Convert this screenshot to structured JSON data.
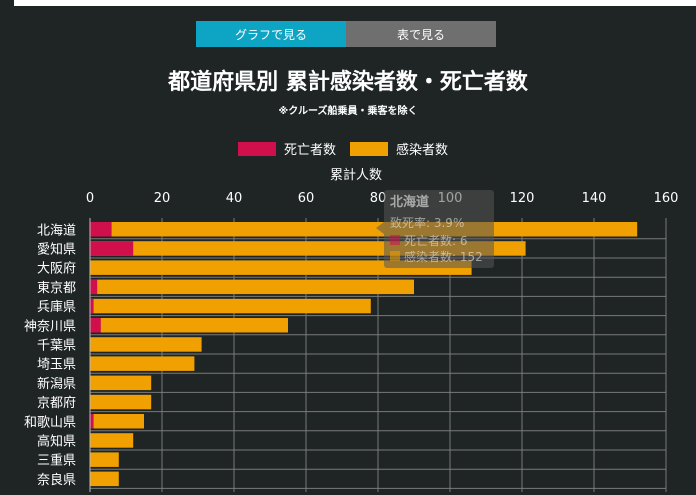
{
  "tabs": [
    {
      "label": "グラフで見る",
      "active": true
    },
    {
      "label": "表で見る",
      "active": false
    }
  ],
  "title": "都道府県別 累計感染者数・死亡者数",
  "subtitle": "※クルーズ船乗員・乗客を除く",
  "colors": {
    "deaths": "#d0104c",
    "infections": "#f0a000",
    "grid": "#7a7a7a",
    "background": "#1f2424"
  },
  "chart_data": {
    "type": "bar",
    "orientation": "horizontal",
    "stacked": true,
    "xlabel": "累計人数",
    "xlim": [
      0,
      160
    ],
    "xticks": [
      0,
      20,
      40,
      60,
      80,
      100,
      120,
      140,
      160
    ],
    "legend_position": "top",
    "categories": [
      "北海道",
      "愛知県",
      "大阪府",
      "東京都",
      "兵庫県",
      "神奈川県",
      "千葉県",
      "埼玉県",
      "新潟県",
      "京都府",
      "和歌山県",
      "高知県",
      "三重県",
      "奈良県"
    ],
    "series": [
      {
        "name": "死亡者数",
        "values": [
          6,
          12,
          0,
          2,
          1,
          3,
          0,
          0,
          0,
          0,
          1,
          0,
          0,
          0
        ]
      },
      {
        "name": "感染者数",
        "values": [
          152,
          121,
          106,
          90,
          78,
          55,
          31,
          29,
          17,
          17,
          15,
          12,
          8,
          8
        ]
      }
    ]
  },
  "tooltip": {
    "title": "北海道",
    "rate_label": "致死率: 3.9%",
    "deaths_label": "死亡者数: 6",
    "infections_label": "感染者数: 152"
  }
}
